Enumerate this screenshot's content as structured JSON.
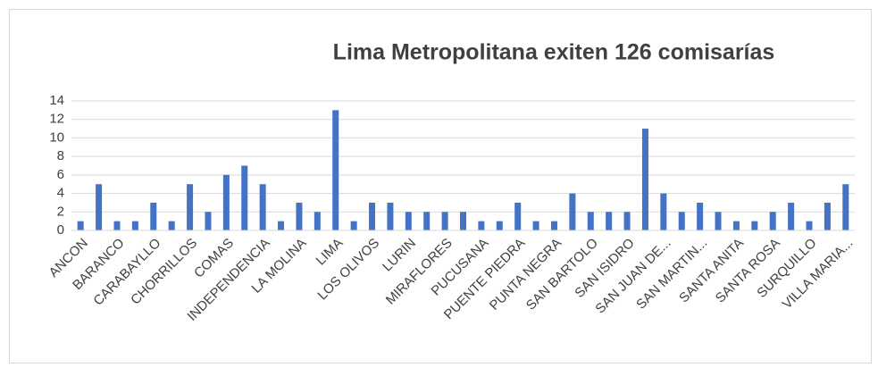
{
  "chart_data": {
    "type": "bar",
    "title": "Lima Metropolitana exiten 126 comisarías",
    "categories": [
      "ANCON",
      null,
      "BARANCO",
      null,
      "CARABAYLLO",
      null,
      "CHORRILLOS",
      null,
      "COMAS",
      null,
      "INDEPENDENCIA",
      null,
      "LA MOLINA",
      null,
      "LIMA",
      null,
      "LOS OLIVOS",
      null,
      "LURIN",
      null,
      "MIRAFLORES",
      null,
      "PUCUSANA",
      null,
      "PUENTE PIEDRA",
      null,
      "PUNTA NEGRA",
      null,
      "SAN BARTOLO",
      null,
      "SAN ISIDRO",
      null,
      "SAN JUAN DE...",
      null,
      "SAN MARTIN...",
      null,
      "SANTA ANITA",
      null,
      "SANTA ROSA",
      null,
      "SURQUILLO",
      null,
      "VILLA MARIA..."
    ],
    "values": [
      1,
      5,
      1,
      1,
      3,
      1,
      5,
      2,
      6,
      7,
      5,
      1,
      3,
      2,
      13,
      1,
      3,
      3,
      2,
      2,
      2,
      2,
      1,
      1,
      3,
      1,
      1,
      4,
      2,
      2,
      2,
      11,
      4,
      2,
      3,
      2,
      1,
      1,
      2,
      3,
      1,
      3,
      5
    ],
    "color": "#4472c4",
    "ylim": [
      0,
      14
    ],
    "yticks": [
      0,
      2,
      4,
      6,
      8,
      10,
      12,
      14
    ],
    "grid": true
  }
}
